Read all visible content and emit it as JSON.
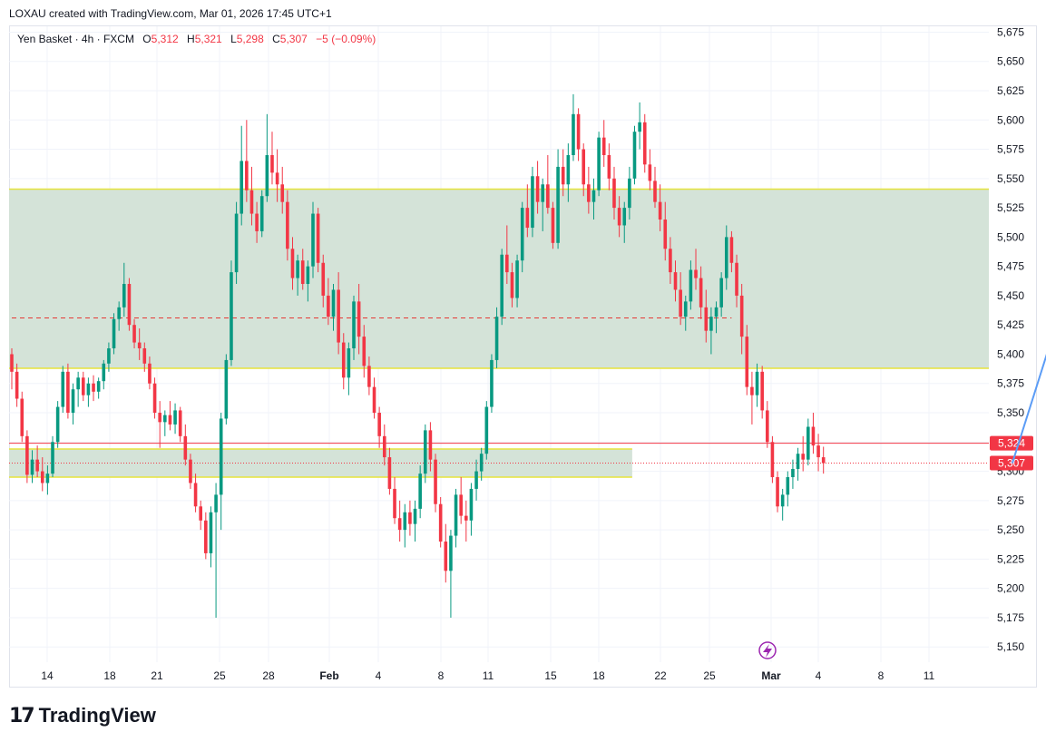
{
  "header": {
    "text": "LOXAU created with TradingView.com, Mar 01, 2026 17:45 UTC+1"
  },
  "legend": {
    "symbol": "Yen Basket · 4h · FXCM",
    "o_label": "O",
    "o_value": "5,312",
    "h_label": "H",
    "h_value": "5,321",
    "l_label": "L",
    "l_value": "5,298",
    "c_label": "C",
    "c_value": "5,307",
    "change": "−5 (−0.09%)"
  },
  "footer": {
    "brand": "TradingView"
  },
  "colors": {
    "up": "#089981",
    "down": "#f23645",
    "zone_fill": "#d2e2d6",
    "zone_border": "#e6e33c",
    "arrow": "#5b9cf6",
    "dashed": "#e53935"
  },
  "chart_data": {
    "type": "candlestick",
    "title": "",
    "ylim": [
      5137,
      5680
    ],
    "y_ticks": [
      "5,150",
      "5,175",
      "5,200",
      "5,225",
      "5,250",
      "5,275",
      "5,300",
      "5,325",
      "5,350",
      "5,375",
      "5,400",
      "5,425",
      "5,450",
      "5,475",
      "5,500",
      "5,525",
      "5,550",
      "5,575",
      "5,600",
      "5,625",
      "5,650",
      "5,675"
    ],
    "x_ticks": [
      "14",
      "18",
      "21",
      "25",
      "28",
      "Feb",
      "4",
      "8",
      "11",
      "15",
      "18",
      "22",
      "25",
      "Mar",
      "4",
      "8",
      "11"
    ],
    "grid": true,
    "price_tags": [
      {
        "label": "5,324",
        "value": 5324,
        "color": "#f23645"
      },
      {
        "label": "5,307",
        "value": 5307,
        "color": "#f23645"
      }
    ],
    "zones": [
      {
        "top": 5541,
        "bottom": 5388,
        "from_index": 0,
        "to_index": "end"
      },
      {
        "top": 5319,
        "bottom": 5295,
        "from_index": 0,
        "to_index": 121
      }
    ],
    "dashed_level": {
      "value": 5431,
      "from_index": 0,
      "to_index": 141
    },
    "arrow": {
      "from": [
        196,
        5307
      ],
      "to": [
        213,
        5541
      ]
    },
    "candles": [
      [
        5400,
        5405,
        5370,
        5385
      ],
      [
        5385,
        5392,
        5355,
        5362
      ],
      [
        5362,
        5368,
        5325,
        5330
      ],
      [
        5330,
        5335,
        5290,
        5297
      ],
      [
        5297,
        5318,
        5290,
        5310
      ],
      [
        5310,
        5322,
        5295,
        5300
      ],
      [
        5300,
        5312,
        5283,
        5290
      ],
      [
        5290,
        5305,
        5280,
        5298
      ],
      [
        5298,
        5330,
        5295,
        5325
      ],
      [
        5325,
        5360,
        5320,
        5355
      ],
      [
        5355,
        5390,
        5350,
        5385
      ],
      [
        5385,
        5392,
        5345,
        5350
      ],
      [
        5350,
        5375,
        5340,
        5370
      ],
      [
        5370,
        5385,
        5355,
        5380
      ],
      [
        5380,
        5385,
        5360,
        5365
      ],
      [
        5365,
        5380,
        5355,
        5375
      ],
      [
        5375,
        5382,
        5360,
        5368
      ],
      [
        5368,
        5380,
        5362,
        5377
      ],
      [
        5377,
        5395,
        5370,
        5392
      ],
      [
        5392,
        5410,
        5385,
        5405
      ],
      [
        5405,
        5435,
        5400,
        5430
      ],
      [
        5430,
        5445,
        5420,
        5440
      ],
      [
        5440,
        5478,
        5432,
        5460
      ],
      [
        5460,
        5465,
        5420,
        5425
      ],
      [
        5425,
        5430,
        5405,
        5410
      ],
      [
        5410,
        5422,
        5395,
        5405
      ],
      [
        5405,
        5410,
        5385,
        5392
      ],
      [
        5392,
        5398,
        5370,
        5375
      ],
      [
        5375,
        5380,
        5345,
        5350
      ],
      [
        5350,
        5360,
        5320,
        5342
      ],
      [
        5342,
        5352,
        5330,
        5348
      ],
      [
        5348,
        5360,
        5335,
        5340
      ],
      [
        5340,
        5358,
        5332,
        5352
      ],
      [
        5352,
        5355,
        5325,
        5330
      ],
      [
        5330,
        5340,
        5305,
        5310
      ],
      [
        5310,
        5315,
        5285,
        5290
      ],
      [
        5290,
        5298,
        5265,
        5270
      ],
      [
        5270,
        5275,
        5250,
        5258
      ],
      [
        5258,
        5265,
        5225,
        5230
      ],
      [
        5230,
        5270,
        5218,
        5265
      ],
      [
        5265,
        5290,
        5175,
        5280
      ],
      [
        5280,
        5350,
        5250,
        5345
      ],
      [
        5345,
        5400,
        5340,
        5395
      ],
      [
        5395,
        5480,
        5390,
        5470
      ],
      [
        5470,
        5530,
        5460,
        5520
      ],
      [
        5520,
        5595,
        5510,
        5565
      ],
      [
        5565,
        5600,
        5530,
        5540
      ],
      [
        5540,
        5560,
        5510,
        5520
      ],
      [
        5520,
        5530,
        5495,
        5505
      ],
      [
        5505,
        5540,
        5500,
        5535
      ],
      [
        5535,
        5605,
        5530,
        5570
      ],
      [
        5570,
        5590,
        5545,
        5555
      ],
      [
        5555,
        5575,
        5530,
        5545
      ],
      [
        5545,
        5560,
        5520,
        5530
      ],
      [
        5530,
        5540,
        5480,
        5490
      ],
      [
        5490,
        5500,
        5455,
        5465
      ],
      [
        5465,
        5485,
        5450,
        5480
      ],
      [
        5480,
        5490,
        5455,
        5460
      ],
      [
        5460,
        5480,
        5445,
        5475
      ],
      [
        5475,
        5530,
        5465,
        5520
      ],
      [
        5520,
        5525,
        5470,
        5478
      ],
      [
        5478,
        5485,
        5440,
        5450
      ],
      [
        5450,
        5465,
        5425,
        5432
      ],
      [
        5432,
        5460,
        5420,
        5455
      ],
      [
        5455,
        5470,
        5400,
        5410
      ],
      [
        5410,
        5418,
        5370,
        5380
      ],
      [
        5380,
        5410,
        5365,
        5405
      ],
      [
        5405,
        5450,
        5395,
        5445
      ],
      [
        5445,
        5460,
        5400,
        5415
      ],
      [
        5415,
        5425,
        5380,
        5390
      ],
      [
        5390,
        5398,
        5365,
        5372
      ],
      [
        5372,
        5380,
        5345,
        5350
      ],
      [
        5350,
        5355,
        5320,
        5330
      ],
      [
        5330,
        5340,
        5305,
        5312
      ],
      [
        5312,
        5320,
        5280,
        5285
      ],
      [
        5285,
        5295,
        5255,
        5260
      ],
      [
        5260,
        5275,
        5240,
        5250
      ],
      [
        5250,
        5272,
        5235,
        5265
      ],
      [
        5265,
        5275,
        5245,
        5255
      ],
      [
        5255,
        5275,
        5240,
        5268
      ],
      [
        5268,
        5305,
        5260,
        5298
      ],
      [
        5298,
        5340,
        5290,
        5335
      ],
      [
        5335,
        5342,
        5300,
        5310
      ],
      [
        5310,
        5315,
        5265,
        5272
      ],
      [
        5272,
        5278,
        5235,
        5240
      ],
      [
        5240,
        5255,
        5205,
        5215
      ],
      [
        5215,
        5250,
        5175,
        5245
      ],
      [
        5245,
        5285,
        5235,
        5280
      ],
      [
        5280,
        5295,
        5255,
        5262
      ],
      [
        5262,
        5275,
        5240,
        5258
      ],
      [
        5258,
        5290,
        5245,
        5285
      ],
      [
        5285,
        5310,
        5275,
        5300
      ],
      [
        5300,
        5320,
        5292,
        5315
      ],
      [
        5315,
        5360,
        5310,
        5355
      ],
      [
        5355,
        5400,
        5350,
        5395
      ],
      [
        5395,
        5440,
        5388,
        5432
      ],
      [
        5432,
        5490,
        5425,
        5485
      ],
      [
        5485,
        5510,
        5460,
        5470
      ],
      [
        5470,
        5478,
        5440,
        5448
      ],
      [
        5448,
        5485,
        5440,
        5480
      ],
      [
        5480,
        5530,
        5470,
        5525
      ],
      [
        5525,
        5545,
        5500,
        5508
      ],
      [
        5508,
        5560,
        5500,
        5552
      ],
      [
        5552,
        5565,
        5520,
        5530
      ],
      [
        5530,
        5550,
        5505,
        5545
      ],
      [
        5545,
        5570,
        5520,
        5525
      ],
      [
        5525,
        5530,
        5490,
        5495
      ],
      [
        5495,
        5575,
        5490,
        5560
      ],
      [
        5560,
        5575,
        5535,
        5545
      ],
      [
        5545,
        5580,
        5530,
        5570
      ],
      [
        5570,
        5622,
        5565,
        5605
      ],
      [
        5605,
        5610,
        5565,
        5575
      ],
      [
        5575,
        5580,
        5535,
        5545
      ],
      [
        5545,
        5560,
        5520,
        5530
      ],
      [
        5530,
        5550,
        5515,
        5540
      ],
      [
        5540,
        5590,
        5535,
        5585
      ],
      [
        5585,
        5600,
        5560,
        5570
      ],
      [
        5570,
        5580,
        5540,
        5550
      ],
      [
        5550,
        5560,
        5515,
        5525
      ],
      [
        5525,
        5535,
        5500,
        5510
      ],
      [
        5510,
        5530,
        5495,
        5525
      ],
      [
        5525,
        5560,
        5515,
        5550
      ],
      [
        5550,
        5595,
        5545,
        5590
      ],
      [
        5590,
        5615,
        5575,
        5598
      ],
      [
        5598,
        5605,
        5555,
        5562
      ],
      [
        5562,
        5575,
        5540,
        5548
      ],
      [
        5548,
        5560,
        5525,
        5530
      ],
      [
        5530,
        5545,
        5505,
        5515
      ],
      [
        5515,
        5530,
        5480,
        5490
      ],
      [
        5490,
        5500,
        5460,
        5470
      ],
      [
        5470,
        5480,
        5445,
        5455
      ],
      [
        5455,
        5470,
        5425,
        5432
      ],
      [
        5432,
        5450,
        5420,
        5445
      ],
      [
        5445,
        5480,
        5438,
        5472
      ],
      [
        5472,
        5490,
        5455,
        5465
      ],
      [
        5465,
        5475,
        5430,
        5440
      ],
      [
        5440,
        5455,
        5410,
        5420
      ],
      [
        5420,
        5440,
        5400,
        5432
      ],
      [
        5432,
        5445,
        5418,
        5440
      ],
      [
        5440,
        5470,
        5432,
        5465
      ],
      [
        5465,
        5510,
        5455,
        5500
      ],
      [
        5500,
        5505,
        5470,
        5478
      ],
      [
        5478,
        5485,
        5440,
        5450
      ],
      [
        5450,
        5460,
        5400,
        5415
      ],
      [
        5415,
        5425,
        5365,
        5372
      ],
      [
        5372,
        5385,
        5340,
        5365
      ],
      [
        5365,
        5392,
        5355,
        5385
      ],
      [
        5385,
        5390,
        5345,
        5352
      ],
      [
        5352,
        5360,
        5320,
        5325
      ],
      [
        5325,
        5330,
        5290,
        5295
      ],
      [
        5295,
        5300,
        5265,
        5270
      ],
      [
        5270,
        5285,
        5258,
        5280
      ],
      [
        5280,
        5300,
        5270,
        5295
      ],
      [
        5295,
        5310,
        5285,
        5302
      ],
      [
        5302,
        5320,
        5292,
        5315
      ],
      [
        5315,
        5330,
        5300,
        5310
      ],
      [
        5310,
        5345,
        5305,
        5338
      ],
      [
        5338,
        5350,
        5315,
        5322
      ],
      [
        5322,
        5332,
        5300,
        5312
      ],
      [
        5312,
        5321,
        5298,
        5307
      ]
    ]
  }
}
